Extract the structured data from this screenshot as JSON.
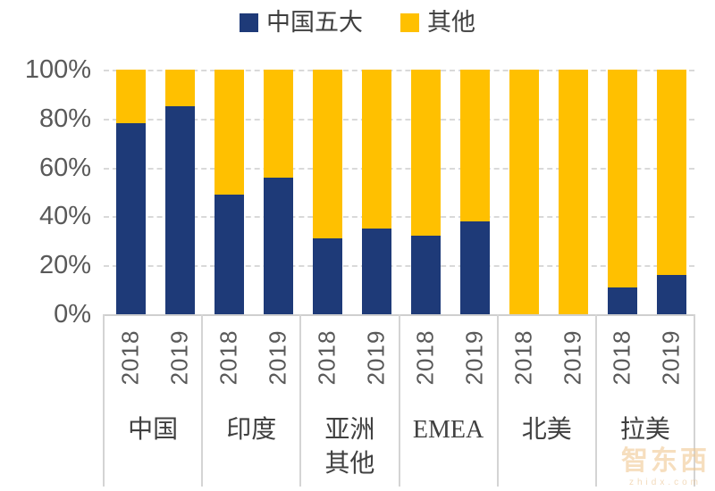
{
  "legend": {
    "items": [
      {
        "key": "china-top5",
        "label": "中国五大",
        "color": "#1e3a78"
      },
      {
        "key": "other",
        "label": "其他",
        "color": "#ffc000"
      }
    ]
  },
  "chart_data": {
    "type": "bar",
    "stacked": true,
    "units": "percent",
    "legend_position": "top-center",
    "grid": "horizontal-dashed",
    "categories_level1": [
      "2018",
      "2019",
      "2018",
      "2019",
      "2018",
      "2019",
      "2018",
      "2019",
      "2018",
      "2019",
      "2018",
      "2019"
    ],
    "groups": [
      {
        "key": "china",
        "label": "中国"
      },
      {
        "key": "india",
        "label": "印度"
      },
      {
        "key": "asia-other",
        "label": "亚洲其他"
      },
      {
        "key": "emea",
        "label": "EMEA"
      },
      {
        "key": "north-america",
        "label": "北美"
      },
      {
        "key": "latam",
        "label": "拉美"
      }
    ],
    "series": [
      {
        "name": "中国五大",
        "color": "#1e3a78",
        "values": [
          78,
          85,
          49,
          56,
          31,
          35,
          32,
          38,
          0,
          0,
          11,
          16
        ]
      },
      {
        "name": "其他",
        "color": "#ffc000",
        "values": [
          22,
          15,
          51,
          44,
          69,
          65,
          68,
          62,
          100,
          100,
          89,
          84
        ]
      }
    ],
    "y_axis": {
      "ticks": [
        "100%",
        "80%",
        "60%",
        "40%",
        "20%",
        "0%"
      ],
      "min": 0,
      "max": 100
    }
  },
  "watermark": {
    "brand": "智东西",
    "domain": "zhidx.com"
  }
}
